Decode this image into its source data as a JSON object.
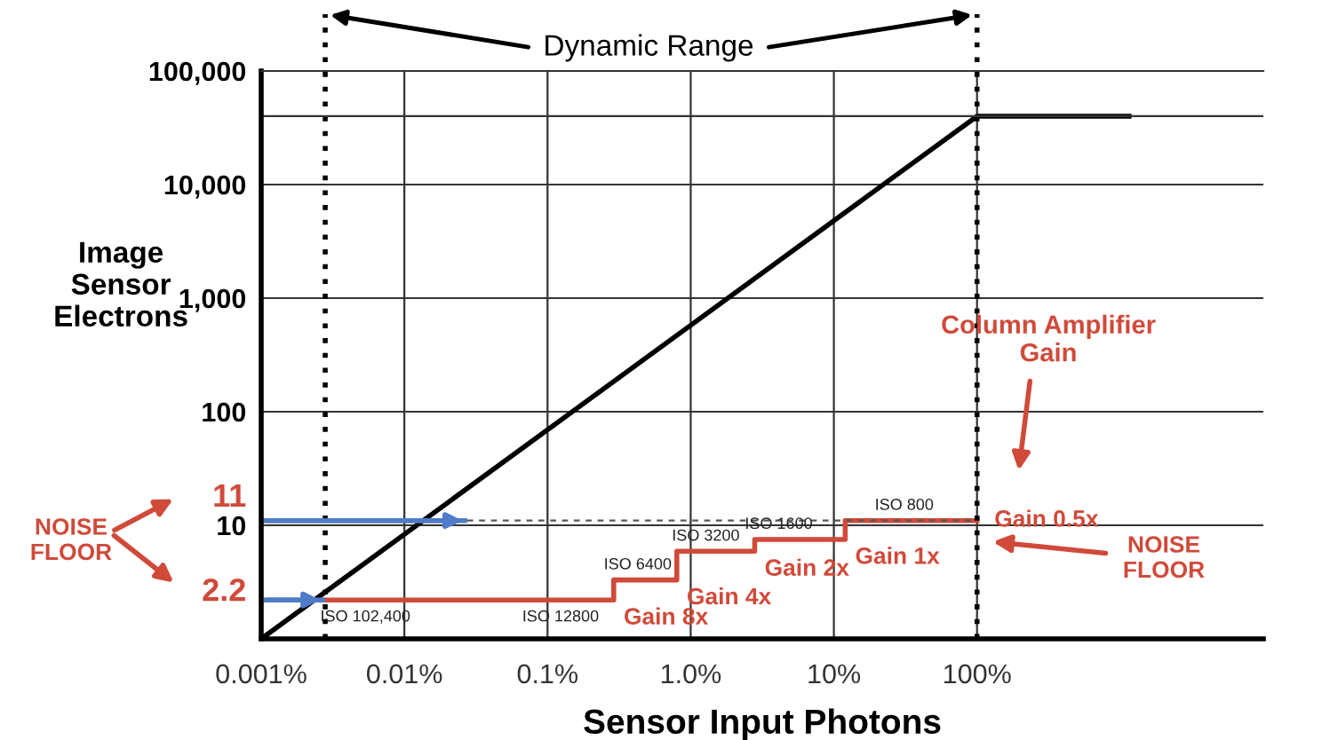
{
  "chart_data": {
    "type": "line",
    "xlabel": "Sensor Input Photons",
    "ylabel": "Image\nSensor\nElectrons",
    "log": "xy",
    "xlim": [
      0.001,
      10000
    ],
    "ylim": [
      1,
      100000
    ],
    "xticks": [
      {
        "value": 0.001,
        "label": "0.001%"
      },
      {
        "value": 0.01,
        "label": "0.01%"
      },
      {
        "value": 0.1,
        "label": "0.1%"
      },
      {
        "value": 1,
        "label": "1.0%"
      },
      {
        "value": 10,
        "label": "10%"
      },
      {
        "value": 100,
        "label": "100%"
      }
    ],
    "yticks": [
      {
        "value": 10,
        "label": "10"
      },
      {
        "value": 100,
        "label": "100"
      },
      {
        "value": 1000,
        "label": "1,000"
      },
      {
        "value": 10000,
        "label": "10,000"
      },
      {
        "value": 100000,
        "label": "100,000"
      }
    ],
    "grid": true,
    "series": [
      {
        "type": "line",
        "color": "#000000",
        "x": [
          0.001,
          100,
          1200
        ],
        "values": [
          1,
          40000,
          40000
        ]
      },
      {
        "type": "step",
        "color": "#d04a3a",
        "x": [
          0.0028,
          0.29,
          0.8,
          2.8,
          12,
          100
        ],
        "values": [
          2.2,
          3.3,
          5.9,
          7.5,
          11,
          11
        ],
        "value_labels": [
          null,
          "Gain 8x",
          "Gain 4x",
          "Gain 2x",
          "Gain 1x",
          "Gain 0.5x"
        ]
      },
      {
        "type": "line",
        "color": "#4f7bc8",
        "x": [
          0.001,
          0.0275
        ],
        "values": [
          11,
          11
        ],
        "value_labels": [
          "11",
          null
        ]
      },
      {
        "type": "line",
        "color": "#4f7bc8",
        "x": [
          0.001,
          0.0028
        ],
        "values": [
          2.2,
          2.2
        ],
        "value_labels": [
          "2.2",
          null
        ]
      },
      {
        "type": "line",
        "color": "#555555",
        "line_style": "dashed",
        "x": [
          0.0275,
          100
        ],
        "values": [
          11,
          11
        ]
      }
    ],
    "ref_lines": [
      {
        "axis": "x",
        "value": 0.0028,
        "line_style": "dotted",
        "color": "#000000"
      },
      {
        "axis": "x",
        "value": 100,
        "line_style": "dotted",
        "color": "#000000"
      },
      {
        "axis": "y",
        "value": 40000,
        "color": "#333333"
      }
    ],
    "annotations": [
      "Dynamic Range",
      "NOISE\nFLOOR",
      "Column Amplifier\nGain",
      "NOISE\nFLOOR",
      {
        "text": "ISO 102,400",
        "x": 0.0028,
        "y": 2.2
      },
      {
        "text": "ISO 12800",
        "x": 0.29,
        "y": 2.2
      },
      {
        "text": "ISO 6400",
        "x": 0.29,
        "y": 3.3
      },
      {
        "text": "ISO 3200",
        "x": 0.8,
        "y": 5.9
      },
      {
        "text": "ISO 1600",
        "x": 2.8,
        "y": 7.5
      },
      {
        "text": "ISO 800",
        "x": 12,
        "y": 11
      }
    ]
  }
}
